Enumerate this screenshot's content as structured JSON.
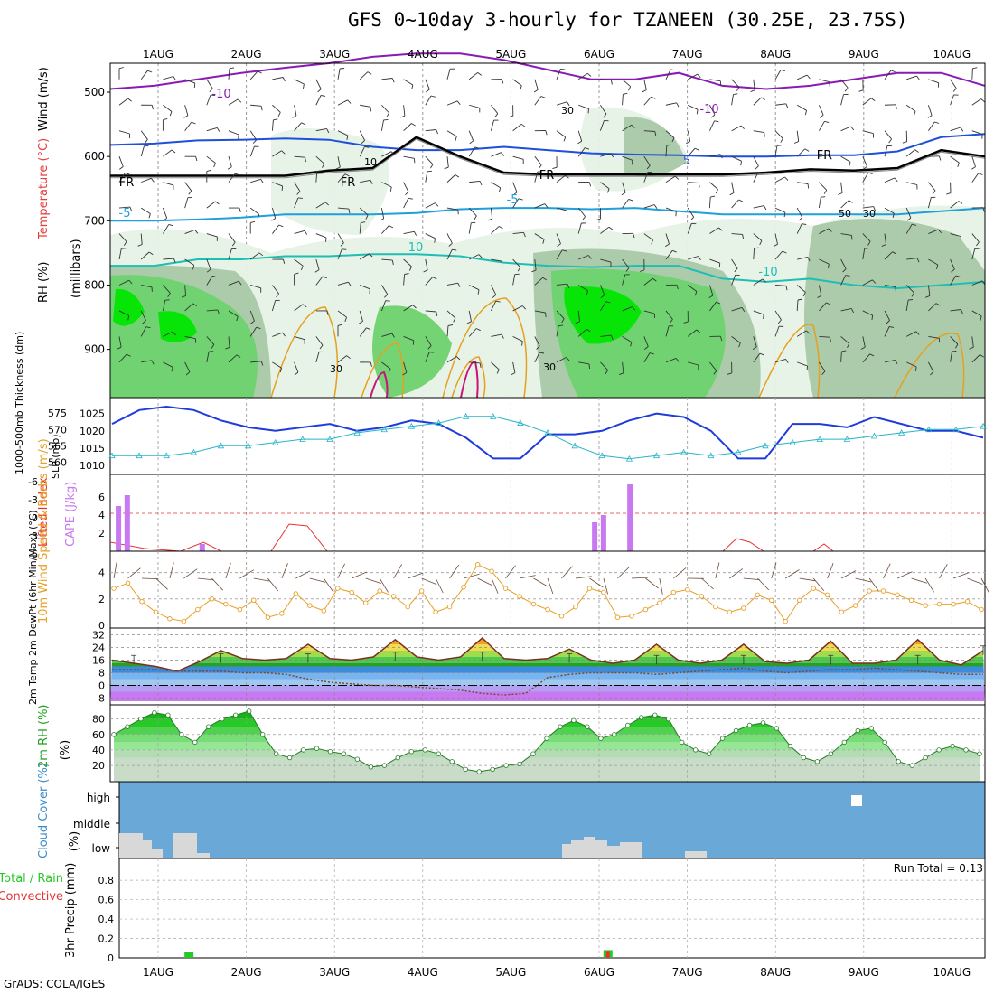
{
  "title": "GFS 0~10day 3-hourly for TZANEEN (30.25E, 23.75S)",
  "credit": "GrADS: COLA/IGES",
  "colors": {
    "rh_light": "#e6f2e6",
    "rh_mid": "#a8c8a8",
    "rh_dark": "#6ed26e",
    "rh_bright": "#00e600",
    "temp_neg10": "#8a1ab4",
    "temp_neg5": "#1e50dc",
    "temp_5": "#1ea0dc",
    "temp_10": "#1ebeb4",
    "temp_warm": "#e6a01e",
    "slp": "#1e3cdc",
    "thickness": "#28b4c8",
    "cape": "#c878f0",
    "lifted": "#e63232",
    "wind10m": "#e6a028",
    "cloud_bg": "#6aa8d8",
    "cloud_fill": "#d8d8d8",
    "precip_total": "#28c828",
    "precip_conv": "#e63232"
  },
  "chart_data": [
    {
      "type": "heatmap",
      "panel": "upper-air",
      "x_tick_labels": [
        "1AUG",
        "2AUG",
        "3AUG",
        "4AUG",
        "5AUG",
        "6AUG",
        "7AUG",
        "8AUG",
        "9AUG",
        "10AUG"
      ],
      "ylabel_parts": [
        "RH (%)",
        "Temperature (°C)",
        "Wind (m/s)"
      ],
      "ylabel_axis": "(millibars)",
      "y_ticks": [
        500,
        600,
        700,
        800,
        900
      ],
      "contour_labels": [
        "-10",
        "-10",
        "-5",
        "-5",
        "FR",
        "FR",
        "FR",
        "FR",
        "10",
        "-10",
        "30",
        "30",
        "10",
        "50",
        "30",
        "30"
      ],
      "temperature_levels_mb": {
        "m10": [
          495,
          490,
          480,
          470,
          462,
          455,
          445,
          440,
          440,
          450,
          465,
          480,
          480,
          470,
          490,
          495,
          490,
          480,
          470,
          470,
          490
        ],
        "m5": [
          582,
          580,
          575,
          574,
          572,
          574,
          585,
          590,
          590,
          585,
          590,
          595,
          597,
          598,
          600,
          600,
          598,
          598,
          592,
          570,
          565
        ],
        "fr": [
          630,
          630,
          630,
          630,
          630,
          622,
          618,
          570,
          600,
          625,
          628,
          628,
          628,
          628,
          628,
          625,
          620,
          622,
          618,
          590,
          600
        ],
        "p5": [
          700,
          700,
          698,
          695,
          690,
          690,
          690,
          688,
          682,
          680,
          680,
          682,
          680,
          685,
          690,
          690,
          690,
          690,
          690,
          685,
          680
        ],
        "p10": [
          770,
          770,
          760,
          760,
          755,
          755,
          752,
          752,
          755,
          765,
          770,
          772,
          770,
          770,
          790,
          795,
          790,
          800,
          805,
          800,
          795
        ]
      }
    },
    {
      "type": "line",
      "panel": "slp-thickness",
      "ylabel_left": "1000-500mb Thickness (dm)",
      "ylabel_right": "SLP (mb)",
      "y_ticks_left": [
        "575",
        "570",
        "565",
        "560"
      ],
      "y_ticks_right": [
        "1025",
        "1020",
        "1015",
        "1010"
      ],
      "series": [
        {
          "name": "SLP (mb)",
          "values": [
            1022,
            1026,
            1027,
            1026,
            1023,
            1021,
            1020,
            1021,
            1022,
            1020,
            1021,
            1023,
            1022,
            1018,
            1012,
            1012,
            1019,
            1019,
            1020,
            1023,
            1025,
            1024,
            1020,
            1012,
            1012,
            1022,
            1022,
            1021,
            1024,
            1022,
            1020,
            1020,
            1018
          ]
        },
        {
          "name": "1000-500mb Thickness (dm)",
          "values": [
            562,
            562,
            562,
            563,
            565,
            565,
            566,
            567,
            567,
            569,
            570,
            571,
            572,
            574,
            574,
            572,
            569,
            565,
            562,
            561,
            562,
            563,
            562,
            563,
            565,
            566,
            567,
            567,
            568,
            569,
            570,
            570,
            571
          ]
        }
      ]
    },
    {
      "type": "bar",
      "panel": "cape-li",
      "ylabel_left": "Lifted Index",
      "ylabel_right": "CAPE (J/kg)",
      "y_ticks_left": [
        "-6",
        "-3",
        "0",
        "3",
        "6"
      ],
      "y_ticks_right": [
        "6",
        "4",
        "2"
      ],
      "cape_bars": [
        {
          "day": 0.55,
          "value": 5.0
        },
        {
          "day": 0.65,
          "value": 6.2
        },
        {
          "day": 1.5,
          "value": 0.8
        },
        {
          "day": 5.95,
          "value": 3.2
        },
        {
          "day": 6.05,
          "value": 4.0
        },
        {
          "day": 6.35,
          "value": 7.4
        }
      ]
    },
    {
      "type": "line",
      "panel": "wind10m",
      "ylabel": "10m Wind Speed & Barbs (m/s)",
      "y_ticks": [
        "4",
        "2",
        "0"
      ],
      "series": [
        {
          "name": "10m Wind Speed",
          "values": [
            2.8,
            3.2,
            1.8,
            1.0,
            0.5,
            0.3,
            1.2,
            2.0,
            1.6,
            1.2,
            1.9,
            0.6,
            0.9,
            2.4,
            1.5,
            1.1,
            2.8,
            2.5,
            1.7,
            2.6,
            2.2,
            1.4,
            2.6,
            1.0,
            1.4,
            2.9,
            4.6,
            4.1,
            2.8,
            2.2,
            1.6,
            1.2,
            0.7,
            1.4,
            2.8,
            2.5,
            0.6,
            0.7,
            1.2,
            1.7,
            2.5,
            2.7,
            2.2,
            1.4,
            1.0,
            1.3,
            2.3,
            1.9,
            0.3,
            1.9,
            2.8,
            2.3,
            1.0,
            1.5,
            2.6,
            2.6,
            2.3,
            1.9,
            1.5,
            1.6,
            1.6,
            1.8,
            1.2
          ]
        }
      ]
    },
    {
      "type": "area",
      "panel": "temperature",
      "ylabel": "2m Temp 2m DewPt (6hr Min/Max) (°C)",
      "y_ticks": [
        "32",
        "24",
        "16",
        "8",
        "0",
        "-8"
      ],
      "series": [
        {
          "name": "2m Temp",
          "values": [
            16,
            14,
            12,
            9,
            15,
            22,
            17,
            16,
            17,
            26,
            17,
            16,
            18,
            29,
            18,
            16,
            18,
            30,
            17,
            16,
            17,
            23,
            16,
            14,
            16,
            26,
            16,
            14,
            16,
            26,
            15,
            14,
            16,
            28,
            14,
            14,
            16,
            29,
            16,
            13,
            22
          ]
        },
        {
          "name": "2m DewPt",
          "values": [
            10,
            10,
            10,
            9,
            9,
            9,
            8,
            8,
            7,
            4,
            2,
            1,
            0,
            0,
            -1,
            -2,
            -3,
            -5,
            -6,
            -5,
            5,
            7,
            8,
            8,
            8,
            7,
            8,
            9,
            10,
            11,
            9,
            8,
            9,
            10,
            10,
            11,
            10,
            9,
            8,
            7,
            7
          ]
        }
      ]
    },
    {
      "type": "area",
      "panel": "rh2m",
      "ylabel": "2m RH (%)",
      "y_ticks": [
        "80",
        "60",
        "40",
        "20"
      ],
      "series": [
        {
          "name": "2m RH",
          "values": [
            60,
            70,
            80,
            88,
            85,
            60,
            50,
            70,
            80,
            85,
            90,
            60,
            35,
            30,
            40,
            42,
            38,
            35,
            28,
            18,
            20,
            30,
            38,
            40,
            35,
            25,
            15,
            12,
            15,
            20,
            22,
            35,
            55,
            70,
            78,
            70,
            55,
            60,
            72,
            82,
            85,
            80,
            50,
            40,
            35,
            55,
            65,
            72,
            75,
            68,
            45,
            30,
            25,
            35,
            50,
            65,
            68,
            50,
            25,
            20,
            30,
            40,
            45,
            40,
            35
          ]
        }
      ]
    },
    {
      "type": "bar",
      "panel": "cloud",
      "ylabel": "Cloud Cover (%)",
      "y_ticks": [
        "high",
        "middle",
        "low"
      ]
    },
    {
      "type": "bar",
      "panel": "precip",
      "ylabel_left": "3hr Precip (mm)",
      "ylabel_legend": [
        "Total / Rain",
        "Convective"
      ],
      "y_ticks": [
        "0.8",
        "0.6",
        "0.4",
        "0.2",
        "0"
      ],
      "run_total_label": "Run Total = 0.13",
      "bars": [
        {
          "day": 1.35,
          "total": 0.06,
          "convective": 0.0
        },
        {
          "day": 6.1,
          "total": 0.08,
          "convective": 0.07
        }
      ]
    }
  ]
}
